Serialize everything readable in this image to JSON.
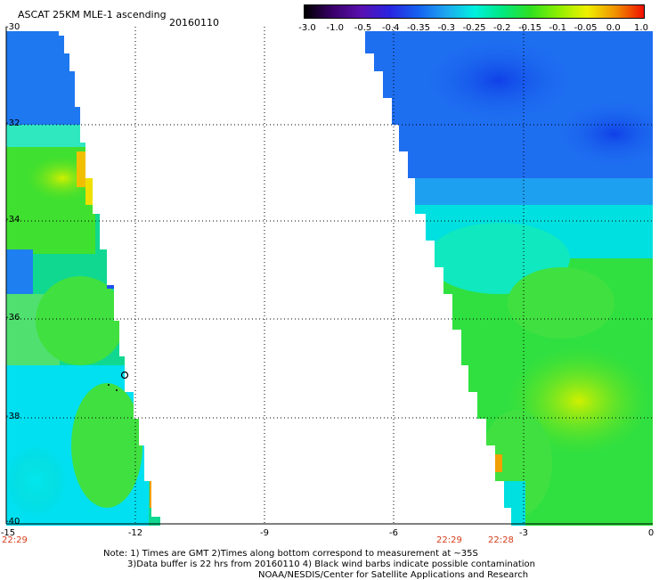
{
  "header": {
    "title": "ASCAT 25KM MLE-1 ascending",
    "date": "20160110"
  },
  "colorbar": {
    "labels": [
      "-3.0",
      "-1.0",
      "-0.5",
      "-0.4",
      "-0.35",
      "-0.3",
      "-0.25",
      "-0.2",
      "-0.15",
      "-0.1",
      "-0.05",
      "0.0",
      "1.0"
    ],
    "colors": [
      "#000000",
      "#3a006a",
      "#5a10b0",
      "#2a24e0",
      "#1560f0",
      "#1ea6f0",
      "#00f0e0",
      "#00e880",
      "#30e020",
      "#90f000",
      "#f0f000",
      "#f09000",
      "#f01000"
    ]
  },
  "axes": {
    "y_ticks": [
      "-30",
      "-32",
      "-34",
      "-36",
      "-38",
      "-40"
    ],
    "x_ticks": [
      "-15",
      "-12",
      "-9",
      "-6",
      "-3",
      "0"
    ]
  },
  "times": {
    "left": "22:29",
    "mid1": "22:29",
    "mid2": "22:28"
  },
  "notes": {
    "line1": "Note: 1) Times are GMT 2)Times along bottom correspond to measurement at ~35S",
    "line2": "3)Data buffer is 22 hrs from 20160110 4) Black wind barbs indicate possible contamination",
    "line3": "NOAA/NESDIS/Center for Satellite Applications and Research"
  }
}
